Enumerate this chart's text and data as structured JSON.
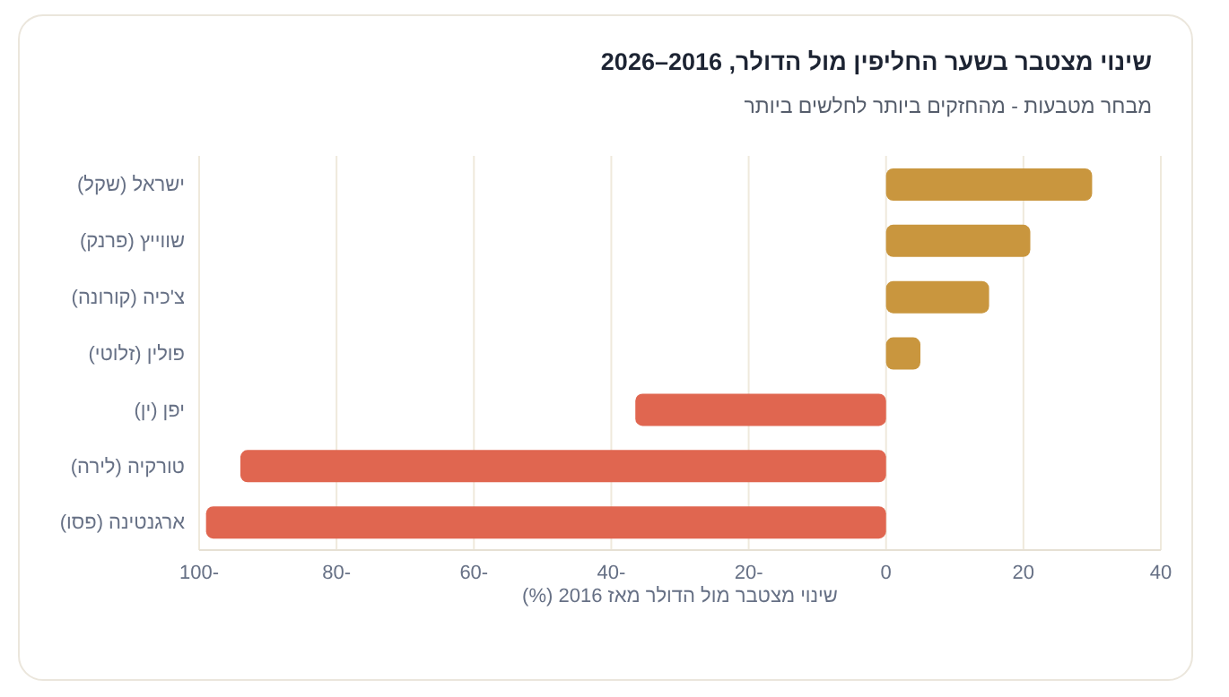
{
  "chart_data": {
    "type": "bar",
    "orientation": "horizontal",
    "title": "שינוי מצטבר בשער החליפין מול הדולר, 2016–2026",
    "subtitle": "מבחר מטבעות - מהחזקים ביותר לחלשים ביותר",
    "xlabel": "שינוי מצטבר מול הדולר מאז 2016 (%)",
    "categories": [
      "ישראל (שקל)",
      "שווייץ (פרנק)",
      "צ'כיה (קורונה)",
      "פולין (זלוטי)",
      "יפן (ין)",
      "טורקיה (לירה)",
      "ארגנטינה (פסו)"
    ],
    "values": [
      30,
      21,
      15,
      5,
      -36.5,
      -94,
      -99
    ],
    "colors": [
      "#c9963e",
      "#c9963e",
      "#c9963e",
      "#c9963e",
      "#e06650",
      "#e06650",
      "#e06650"
    ],
    "xlim": [
      -100,
      40
    ],
    "xticks": [
      {
        "value": -100,
        "label": "100-"
      },
      {
        "value": -80,
        "label": "80-"
      },
      {
        "value": -60,
        "label": "60-"
      },
      {
        "value": -40,
        "label": "40-"
      },
      {
        "value": -20,
        "label": "20-"
      },
      0,
      20,
      40
    ],
    "grid": "x",
    "legend": false
  }
}
